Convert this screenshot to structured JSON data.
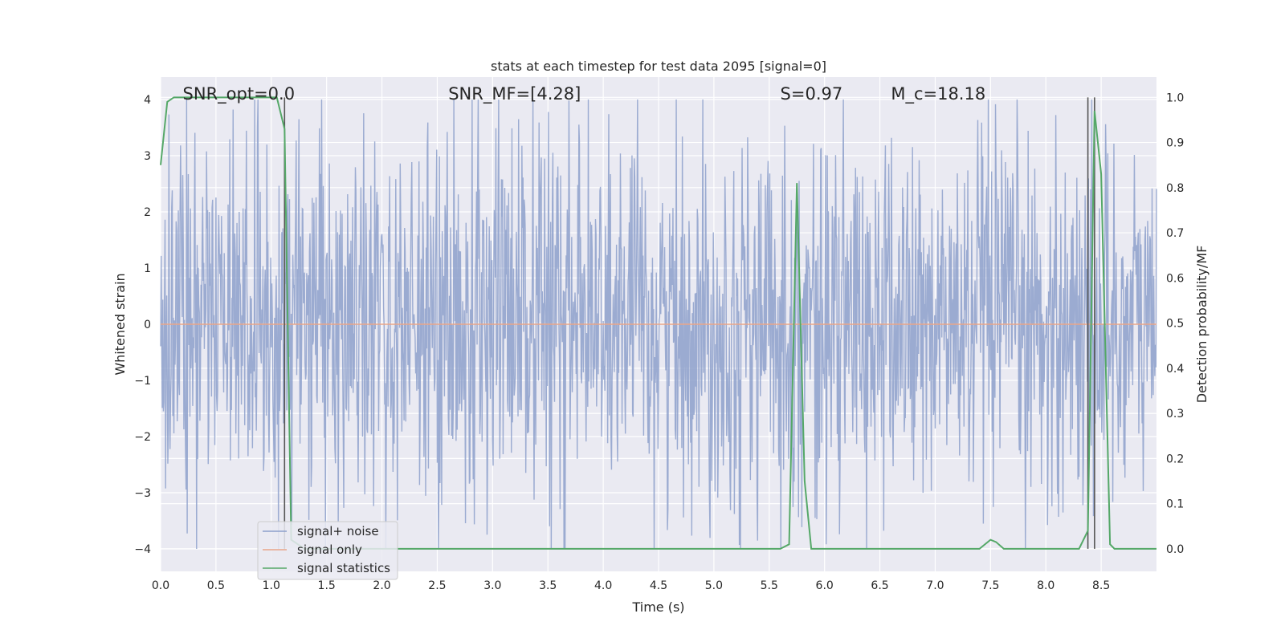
{
  "chart_data": {
    "type": "line",
    "title": "stats at each timestep for test data 2095 [signal=0]",
    "xlabel": "Time (s)",
    "ylabel": "Whitened strain",
    "y2label": "Detection probability/MF",
    "xlim": [
      0,
      9.0
    ],
    "ylim": [
      -4.4,
      4.4
    ],
    "y2lim": [
      -0.05,
      1.045
    ],
    "xticks": [
      0.0,
      0.5,
      1.0,
      1.5,
      2.0,
      2.5,
      3.0,
      3.5,
      4.0,
      4.5,
      5.0,
      5.5,
      6.0,
      6.5,
      7.0,
      7.5,
      8.0,
      8.5
    ],
    "xtick_labels": [
      "0.0",
      "0.5",
      "1.0",
      "1.5",
      "2.0",
      "2.5",
      "3.0",
      "3.5",
      "4.0",
      "4.5",
      "5.0",
      "5.5",
      "6.0",
      "6.5",
      "7.0",
      "7.5",
      "8.0",
      "8.5"
    ],
    "yticks": [
      -4,
      -3,
      -2,
      -1,
      0,
      1,
      2,
      3,
      4
    ],
    "ytick_labels": [
      "−4",
      "−3",
      "−2",
      "−1",
      "0",
      "1",
      "2",
      "3",
      "4"
    ],
    "y2ticks": [
      0.0,
      0.1,
      0.2,
      0.3,
      0.4,
      0.5,
      0.6,
      0.7,
      0.8,
      0.9,
      1.0
    ],
    "y2tick_labels": [
      "0.0",
      "0.1",
      "0.2",
      "0.3",
      "0.4",
      "0.5",
      "0.6",
      "0.7",
      "0.8",
      "0.9",
      "1.0"
    ],
    "grid": true,
    "annotations": [
      {
        "id": "snr-opt",
        "text": "SNR_opt=0.0",
        "x": 0.2
      },
      {
        "id": "snr-mf",
        "text": "SNR_MF=[4.28]",
        "x": 2.6
      },
      {
        "id": "s-stat",
        "text": "S=0.97",
        "x": 5.6
      },
      {
        "id": "mc",
        "text": "M_c=18.18",
        "x": 6.6
      }
    ],
    "legend": {
      "placement": "lower-left",
      "entries": [
        {
          "label": "signal+ noise",
          "color": "#8da0cb"
        },
        {
          "label": "signal only",
          "color": "#e8a58a"
        },
        {
          "label": "signal statistics",
          "color": "#55a868"
        }
      ]
    },
    "series": [
      {
        "name": "signal+ noise",
        "color": "#8da0cb",
        "kind": "noise",
        "x_range": [
          0,
          9.0
        ],
        "typical_amplitude": 1.9,
        "max_abs": 4.0
      },
      {
        "name": "signal only",
        "color": "#e8a58a",
        "kind": "flat",
        "value": 0
      },
      {
        "name": "signal statistics",
        "color": "#55a868",
        "axis": "right",
        "x": [
          0.0,
          0.06,
          0.12,
          0.5,
          1.0,
          1.05,
          1.12,
          1.18,
          1.3,
          2.0,
          3.0,
          4.0,
          4.6,
          5.0,
          5.6,
          5.68,
          5.75,
          5.82,
          5.88,
          6.5,
          7.0,
          7.4,
          7.5,
          7.55,
          7.62,
          7.8,
          8.3,
          8.38,
          8.44,
          8.5,
          8.58,
          8.62,
          8.7,
          9.0
        ],
        "y": [
          0.85,
          0.99,
          1.0,
          1.0,
          1.0,
          1.0,
          0.93,
          0.02,
          0.0,
          0.0,
          0.0,
          0.0,
          0.0,
          0.0,
          0.0,
          0.01,
          0.81,
          0.15,
          0.0,
          0.0,
          0.0,
          0.0,
          0.02,
          0.015,
          0.0,
          0.0,
          0.0,
          0.04,
          0.97,
          0.83,
          0.01,
          0.0,
          0.0,
          0.0
        ]
      }
    ],
    "vertical_lines": [
      1.12,
      8.38,
      8.44
    ],
    "vertical_line_color": "#555555"
  }
}
